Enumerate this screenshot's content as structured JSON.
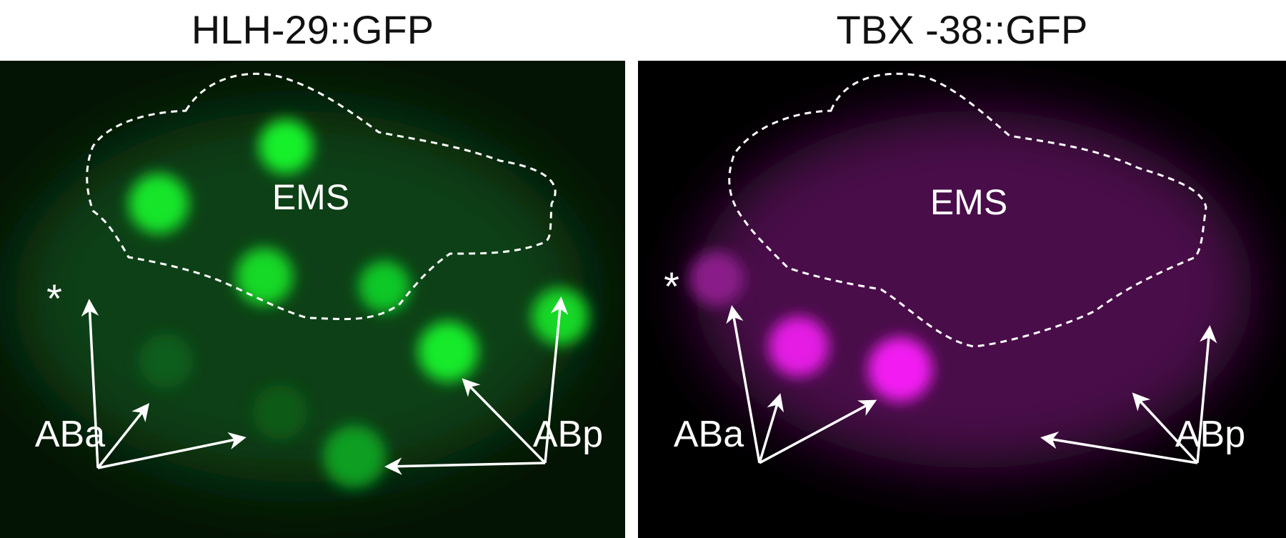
{
  "panels": [
    {
      "title": "HLH-29::GFP",
      "center_label": "EMS",
      "label_left": "ABa",
      "label_right": "ABp",
      "marker": "*",
      "channel_color": "#00ff2a"
    },
    {
      "title": "TBX -38::GFP",
      "center_label": "EMS",
      "label_left": "ABa",
      "label_right": "ABp",
      "marker": "*",
      "channel_color": "#ff00ff"
    }
  ]
}
